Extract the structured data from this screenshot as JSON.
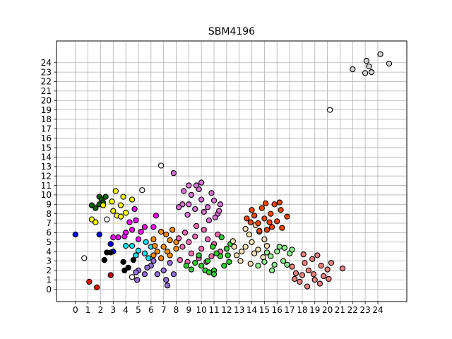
{
  "chart_data": {
    "type": "scatter",
    "title": "SBM4196",
    "xlabel": "",
    "ylabel": "",
    "xlim": [
      -1.5,
      26.3
    ],
    "ylim": [
      -1.3,
      26.3
    ],
    "xticks": [
      "0",
      "1",
      "2",
      "3",
      "4",
      "5",
      "6",
      "7",
      "8",
      "9",
      "10",
      "11",
      "12",
      "13",
      "14",
      "15",
      "16",
      "17",
      "18",
      "19",
      "20",
      "21",
      "22",
      "23",
      "24"
    ],
    "yticks": [
      "0",
      "1",
      "2",
      "3",
      "4",
      "5",
      "6",
      "7",
      "8",
      "9",
      "10",
      "11",
      "12",
      "13",
      "14",
      "15",
      "16",
      "17",
      "18",
      "19",
      "20",
      "21",
      "22",
      "23",
      "24"
    ],
    "grid": true,
    "legend": "none",
    "marker_edge_color": "#000000",
    "series": [
      {
        "color": "#0000ff",
        "points": [
          [
            0,
            5.8
          ],
          [
            1.9,
            5.8
          ],
          [
            2.8,
            4.8
          ],
          [
            3.0,
            4.0
          ]
        ]
      },
      {
        "color": "#ff0000",
        "points": [
          [
            1.1,
            0.8
          ],
          [
            1.7,
            0.2
          ]
        ]
      },
      {
        "color": "#ffffff",
        "points": [
          [
            0.7,
            3.3
          ],
          [
            2.5,
            7.4
          ],
          [
            5.3,
            10.5
          ],
          [
            6.8,
            13.1
          ],
          [
            4.5,
            1.3
          ],
          [
            20.2,
            19.0
          ]
        ]
      },
      {
        "color": "#000000",
        "points": [
          [
            2.5,
            3.9
          ],
          [
            2.3,
            3.1
          ],
          [
            3.8,
            2.9
          ],
          [
            4.2,
            2.3
          ],
          [
            3.9,
            2.0
          ],
          [
            4.6,
            3.1
          ],
          [
            2.8,
            3.9
          ]
        ]
      },
      {
        "color": "#cc0000",
        "points": [
          [
            2.8,
            1.5
          ]
        ]
      },
      {
        "color": "#006400",
        "points": [
          [
            1.9,
            9.8
          ],
          [
            2.1,
            9.5
          ],
          [
            2.4,
            9.8
          ],
          [
            1.6,
            8.6
          ],
          [
            1.3,
            8.9
          ],
          [
            2.2,
            9.2
          ],
          [
            1.9,
            9.0
          ]
        ]
      },
      {
        "color": "#ffff00",
        "points": [
          [
            3.2,
            10.4
          ],
          [
            3.8,
            9.8
          ],
          [
            4.5,
            9.5
          ],
          [
            3.0,
            8.3
          ],
          [
            3.6,
            8.9
          ],
          [
            3.3,
            7.8
          ],
          [
            4.0,
            8.1
          ],
          [
            2.9,
            9.3
          ],
          [
            1.3,
            7.4
          ],
          [
            1.6,
            7.1
          ],
          [
            3.6,
            7.7
          ],
          [
            2.2,
            8.9
          ]
        ]
      },
      {
        "color": "#ff00ff",
        "points": [
          [
            4.5,
            6.3
          ],
          [
            4.0,
            6.0
          ],
          [
            3.4,
            5.5
          ],
          [
            4.8,
            7.3
          ],
          [
            5.2,
            6.1
          ],
          [
            5.0,
            5.3
          ],
          [
            4.3,
            7.1
          ],
          [
            3.9,
            5.6
          ],
          [
            5.5,
            6.6
          ],
          [
            3.0,
            5.5
          ],
          [
            6.4,
            7.8
          ],
          [
            6.2,
            6.6
          ],
          [
            4.7,
            8.5
          ]
        ]
      },
      {
        "color": "#00e5ee",
        "points": [
          [
            4.5,
            4.6
          ],
          [
            5.0,
            4.1
          ],
          [
            5.5,
            3.8
          ],
          [
            4.0,
            4.6
          ],
          [
            6.0,
            4.5
          ],
          [
            5.6,
            5.0
          ],
          [
            4.8,
            3.6
          ],
          [
            5.8,
            3.3
          ]
        ]
      },
      {
        "color": "#9370db",
        "points": [
          [
            5.0,
            2.0
          ],
          [
            6.0,
            2.5
          ],
          [
            6.5,
            1.6
          ],
          [
            7.0,
            2.0
          ],
          [
            7.5,
            2.8
          ],
          [
            7.2,
            1.0
          ],
          [
            5.5,
            1.6
          ],
          [
            6.2,
            3.0
          ],
          [
            4.9,
            1.0
          ],
          [
            7.8,
            1.6
          ],
          [
            7.3,
            0.4
          ],
          [
            6.8,
            3.3
          ],
          [
            5.7,
            2.3
          ],
          [
            4.8,
            1.8
          ]
        ]
      },
      {
        "color": "#ff8c00",
        "points": [
          [
            6.5,
            4.0
          ],
          [
            7.0,
            4.5
          ],
          [
            7.5,
            5.2
          ],
          [
            6.2,
            5.3
          ],
          [
            6.8,
            3.3
          ],
          [
            7.5,
            3.6
          ],
          [
            8.0,
            4.3
          ],
          [
            7.2,
            5.8
          ],
          [
            6.3,
            4.6
          ],
          [
            7.7,
            6.3
          ],
          [
            6.8,
            6.1
          ],
          [
            8.0,
            5.0
          ],
          [
            6.2,
            3.6
          ],
          [
            7.3,
            4.0
          ]
        ]
      },
      {
        "color": "#da70d6",
        "points": [
          [
            9.0,
            9.0
          ],
          [
            9.5,
            8.5
          ],
          [
            10.0,
            9.5
          ],
          [
            10.5,
            8.7
          ],
          [
            11.0,
            9.4
          ],
          [
            9.2,
            10.0
          ],
          [
            9.8,
            10.6
          ],
          [
            10.2,
            8.2
          ],
          [
            10.8,
            10.2
          ],
          [
            11.3,
            8.0
          ],
          [
            9.0,
            11.0
          ],
          [
            8.5,
            9.0
          ],
          [
            8.2,
            8.7
          ],
          [
            10.0,
            11.3
          ],
          [
            11.4,
            8.3
          ],
          [
            10.6,
            7.3
          ],
          [
            11.5,
            9.0
          ],
          [
            8.9,
            7.9
          ],
          [
            7.8,
            12.3
          ],
          [
            9.6,
            11.0
          ],
          [
            8.6,
            10.4
          ],
          [
            11.1,
            7.6
          ]
        ]
      },
      {
        "color": "#ff69b4",
        "points": [
          [
            8.5,
            4.5
          ],
          [
            9.0,
            5.0
          ],
          [
            9.5,
            5.6
          ],
          [
            10.0,
            4.3
          ],
          [
            10.5,
            5.3
          ],
          [
            11.0,
            4.8
          ],
          [
            9.2,
            3.8
          ],
          [
            8.7,
            6.0
          ],
          [
            10.2,
            6.3
          ],
          [
            11.3,
            5.8
          ],
          [
            9.8,
            3.3
          ],
          [
            10.8,
            3.5
          ],
          [
            8.3,
            3.1
          ],
          [
            11.5,
            4.0
          ],
          [
            9.6,
            6.7
          ],
          [
            8.9,
            2.9
          ],
          [
            10.4,
            2.9
          ],
          [
            8.2,
            5.4
          ]
        ]
      },
      {
        "color": "#32cd32",
        "points": [
          [
            10.0,
            2.5
          ],
          [
            10.5,
            3.0
          ],
          [
            11.0,
            2.0
          ],
          [
            11.5,
            3.5
          ],
          [
            12.0,
            4.3
          ],
          [
            10.3,
            2.0
          ],
          [
            9.5,
            2.8
          ],
          [
            11.2,
            3.8
          ],
          [
            12.2,
            2.9
          ],
          [
            11.8,
            2.5
          ],
          [
            10.9,
            4.5
          ],
          [
            9.8,
            3.6
          ],
          [
            12.1,
            3.6
          ],
          [
            11.6,
            5.5
          ],
          [
            11.0,
            1.6
          ],
          [
            9.2,
            2.1
          ],
          [
            10.6,
            1.8
          ],
          [
            12.3,
            4.8
          ],
          [
            8.8,
            2.5
          ]
        ]
      },
      {
        "color": "#f5deb3",
        "points": [
          [
            13.5,
            4.5
          ],
          [
            14.0,
            5.0
          ],
          [
            14.5,
            4.2
          ],
          [
            13.8,
            5.8
          ],
          [
            14.6,
            6.1
          ],
          [
            15.0,
            5.3
          ],
          [
            13.2,
            4.0
          ],
          [
            12.6,
            4.5
          ],
          [
            14.2,
            3.8
          ],
          [
            13.5,
            6.4
          ],
          [
            15.2,
            4.6
          ],
          [
            12.8,
            3.6
          ],
          [
            14.9,
            3.4
          ],
          [
            13.9,
            2.7
          ],
          [
            12.5,
            5.1
          ],
          [
            14.3,
            6.8
          ],
          [
            13.1,
            3.0
          ]
        ]
      },
      {
        "color": "#ff4500",
        "points": [
          [
            14.5,
            7.0
          ],
          [
            15.0,
            7.5
          ],
          [
            15.5,
            8.0
          ],
          [
            16.0,
            7.2
          ],
          [
            14.2,
            7.8
          ],
          [
            14.8,
            8.6
          ],
          [
            15.6,
            6.6
          ],
          [
            16.3,
            8.4
          ],
          [
            13.9,
            7.1
          ],
          [
            15.2,
            6.3
          ],
          [
            16.4,
            6.5
          ],
          [
            15.1,
            9.1
          ],
          [
            13.6,
            7.5
          ],
          [
            16.8,
            7.7
          ],
          [
            14.6,
            6.2
          ],
          [
            15.8,
            9.0
          ],
          [
            14.0,
            8.4
          ],
          [
            16.2,
            9.2
          ],
          [
            15.4,
            7.1
          ]
        ]
      },
      {
        "color": "#90ee90",
        "points": [
          [
            15.5,
            3.5
          ],
          [
            16.0,
            4.0
          ],
          [
            16.5,
            3.0
          ],
          [
            17.0,
            3.8
          ],
          [
            15.8,
            2.6
          ],
          [
            16.2,
            4.5
          ],
          [
            15.2,
            3.9
          ],
          [
            16.8,
            2.6
          ],
          [
            17.2,
            4.2
          ],
          [
            15.6,
            2.0
          ],
          [
            16.6,
            4.4
          ],
          [
            15.0,
            2.9
          ],
          [
            14.5,
            2.5
          ]
        ]
      },
      {
        "color": "#f08080",
        "points": [
          [
            18.0,
            1.5
          ],
          [
            18.5,
            2.0
          ],
          [
            19.0,
            1.0
          ],
          [
            19.5,
            2.5
          ],
          [
            18.2,
            2.8
          ],
          [
            17.5,
            1.7
          ],
          [
            18.8,
            3.2
          ],
          [
            19.7,
            1.4
          ],
          [
            17.8,
            0.8
          ],
          [
            20.0,
            2.1
          ],
          [
            18.4,
            0.3
          ],
          [
            17.2,
            2.4
          ],
          [
            19.2,
            3.6
          ],
          [
            20.3,
            2.8
          ],
          [
            18.9,
            1.6
          ],
          [
            21.2,
            2.2
          ],
          [
            17.4,
            1.1
          ],
          [
            18.1,
            3.7
          ],
          [
            19.4,
            0.6
          ],
          [
            20.1,
            1.1
          ]
        ]
      },
      {
        "color": "#d3d3d3",
        "points": [
          [
            22.0,
            23.3
          ],
          [
            23.1,
            24.2
          ],
          [
            23.3,
            23.6
          ],
          [
            23.0,
            22.9
          ],
          [
            23.5,
            23.0
          ],
          [
            24.2,
            24.9
          ],
          [
            24.9,
            23.9
          ]
        ]
      }
    ]
  }
}
